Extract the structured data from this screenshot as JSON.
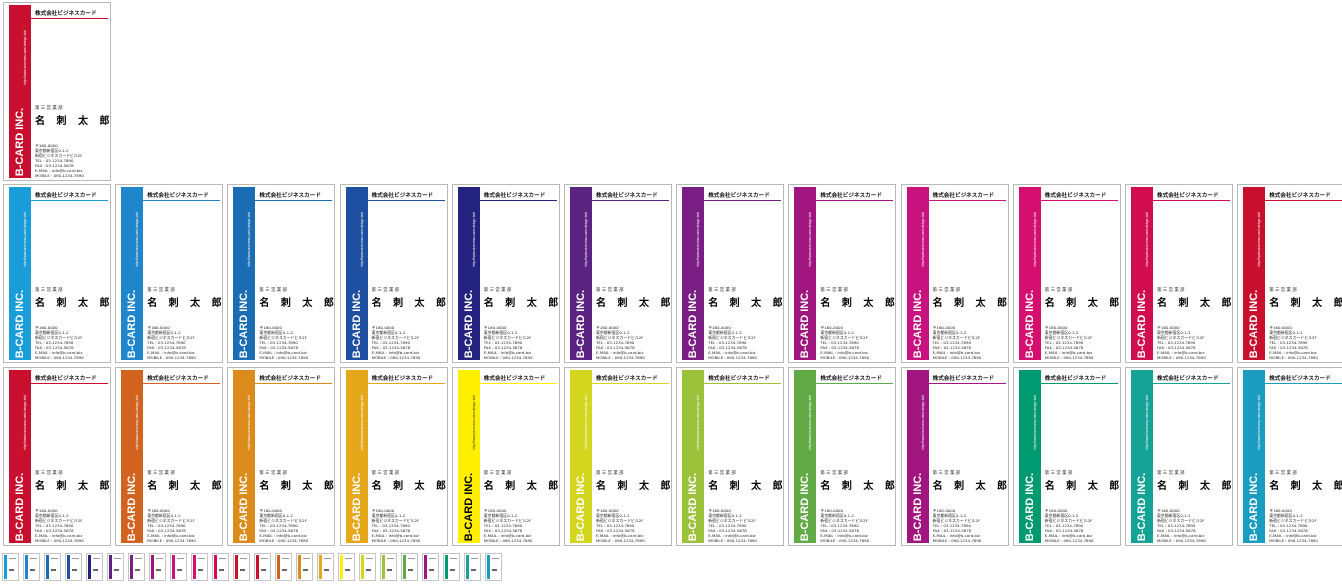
{
  "card_text": {
    "company": "株式会社ビジネスカード",
    "brand": "B-CARD INC.",
    "url": "http://www.business-card-design.biz/",
    "department": "第 三 営 業 部",
    "name": "名 刺 太 郎",
    "address_lines": [
      "〒160-0000",
      "東京都新宿区0-1-2",
      "新宿ビジネスカードビル2F",
      "TEL : 03-1234-7890",
      "FAX : 03-1234-5678",
      "E-MAIL : info@b-card.biz",
      "MOBILE : 090-1234-7890"
    ]
  },
  "colors": {
    "top": "#c8102e",
    "row1": [
      "#1a9cd8",
      "#1f86cc",
      "#1a6db3",
      "#1f4fa0",
      "#23237f",
      "#5c2482",
      "#7b1e83",
      "#a0157e",
      "#c8127e",
      "#d40f6f",
      "#d10d4f",
      "#c8102e"
    ],
    "row2": [
      "#c8102e",
      "#d2621f",
      "#db8b1c",
      "#e6a81b",
      "#f0c400",
      "#fff000",
      "#d3d61f",
      "#9cc13a",
      "#62aa45",
      "#a0157e",
      "#009970",
      "#16a397",
      "#1a9bc0"
    ],
    "brand_dark_on": "#fff000",
    "thumbs": [
      "#1a9cd8",
      "#1f86cc",
      "#1a6db3",
      "#1f4fa0",
      "#23237f",
      "#5c2482",
      "#7b1e83",
      "#a0157e",
      "#c8127e",
      "#d40f6f",
      "#d10d4f",
      "#c8102e",
      "#c8102e",
      "#d2621f",
      "#db8b1c",
      "#e6a81b",
      "#fff000",
      "#d3d61f",
      "#9cc13a",
      "#62aa45",
      "#a0157e",
      "#009970",
      "#16a397",
      "#1a9bc0"
    ]
  }
}
